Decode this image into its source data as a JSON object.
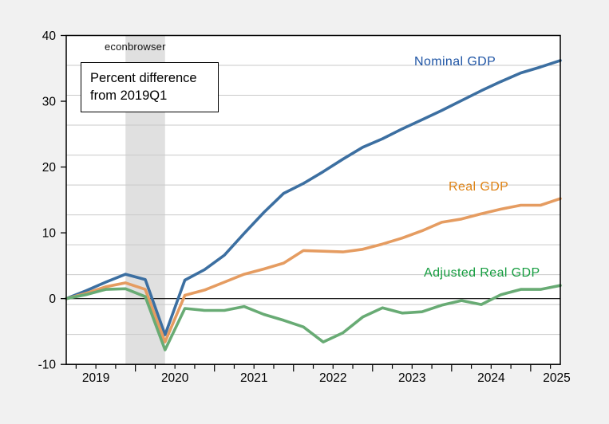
{
  "page": {
    "background_color": "#f1f1f1",
    "watermark": "econbrowser",
    "annotation": "Percent difference from 2019Q1"
  },
  "chart_data": {
    "type": "line",
    "title": "",
    "annotation": "Percent difference from 2019Q1",
    "watermark": "econbrowser",
    "x_categories": [
      "2019Q1",
      "2019Q2",
      "2019Q3",
      "2019Q4",
      "2020Q1",
      "2020Q2",
      "2020Q3",
      "2020Q4",
      "2021Q1",
      "2021Q2",
      "2021Q3",
      "2021Q4",
      "2022Q1",
      "2022Q2",
      "2022Q3",
      "2022Q4",
      "2023Q1",
      "2023Q2",
      "2023Q3",
      "2023Q4",
      "2024Q1",
      "2024Q2",
      "2024Q3",
      "2024Q4",
      "2025Q1",
      "2025Q2"
    ],
    "x_year_labels": [
      "2019",
      "2020",
      "2021",
      "2022",
      "2023",
      "2024",
      "2025"
    ],
    "ylim": [
      -10,
      40
    ],
    "yticks": [
      -10,
      0,
      10,
      20,
      30,
      40
    ],
    "grid": "horizontal, 10 interior gridlines, light gray",
    "zero_line": true,
    "legend_position": "inline-labels",
    "plot_bg": "#ffffff",
    "gridline_color": "#c9c9c9",
    "recession_band": {
      "from": "2019Q4",
      "to": "2020Q2",
      "color": "#e0e0e0"
    },
    "series": [
      {
        "name": "Nominal GDP",
        "line_color": "#3c6fa1",
        "label_color": "#1f55a5",
        "values": [
          0,
          1.2,
          2.5,
          3.7,
          2.9,
          -5.5,
          2.8,
          4.4,
          6.6,
          9.9,
          13.1,
          16.0,
          17.5,
          19.3,
          21.2,
          23.0,
          24.3,
          25.8,
          27.2,
          28.6,
          30.1,
          31.6,
          33.0,
          34.3,
          35.2,
          36.2
        ]
      },
      {
        "name": "Real GDP",
        "line_color": "#e59c61",
        "label_color": "#de8214",
        "values": [
          0,
          0.8,
          1.8,
          2.4,
          1.4,
          -6.6,
          0.5,
          1.3,
          2.5,
          3.7,
          4.5,
          5.4,
          7.3,
          7.2,
          7.1,
          7.5,
          8.3,
          9.2,
          10.3,
          11.6,
          12.1,
          12.9,
          13.6,
          14.2,
          14.2,
          15.2
        ]
      },
      {
        "name": "Adjusted Real GDP",
        "line_color": "#68ab74",
        "label_color": "#159c3f",
        "values": [
          0,
          0.6,
          1.4,
          1.5,
          0.3,
          -7.8,
          -1.5,
          -1.8,
          -1.8,
          -1.2,
          -2.4,
          -3.3,
          -4.3,
          -6.6,
          -5.2,
          -2.8,
          -1.4,
          -2.2,
          -2.0,
          -1.0,
          -0.3,
          -0.9,
          0.6,
          1.4,
          1.4,
          2.0
        ]
      }
    ]
  }
}
